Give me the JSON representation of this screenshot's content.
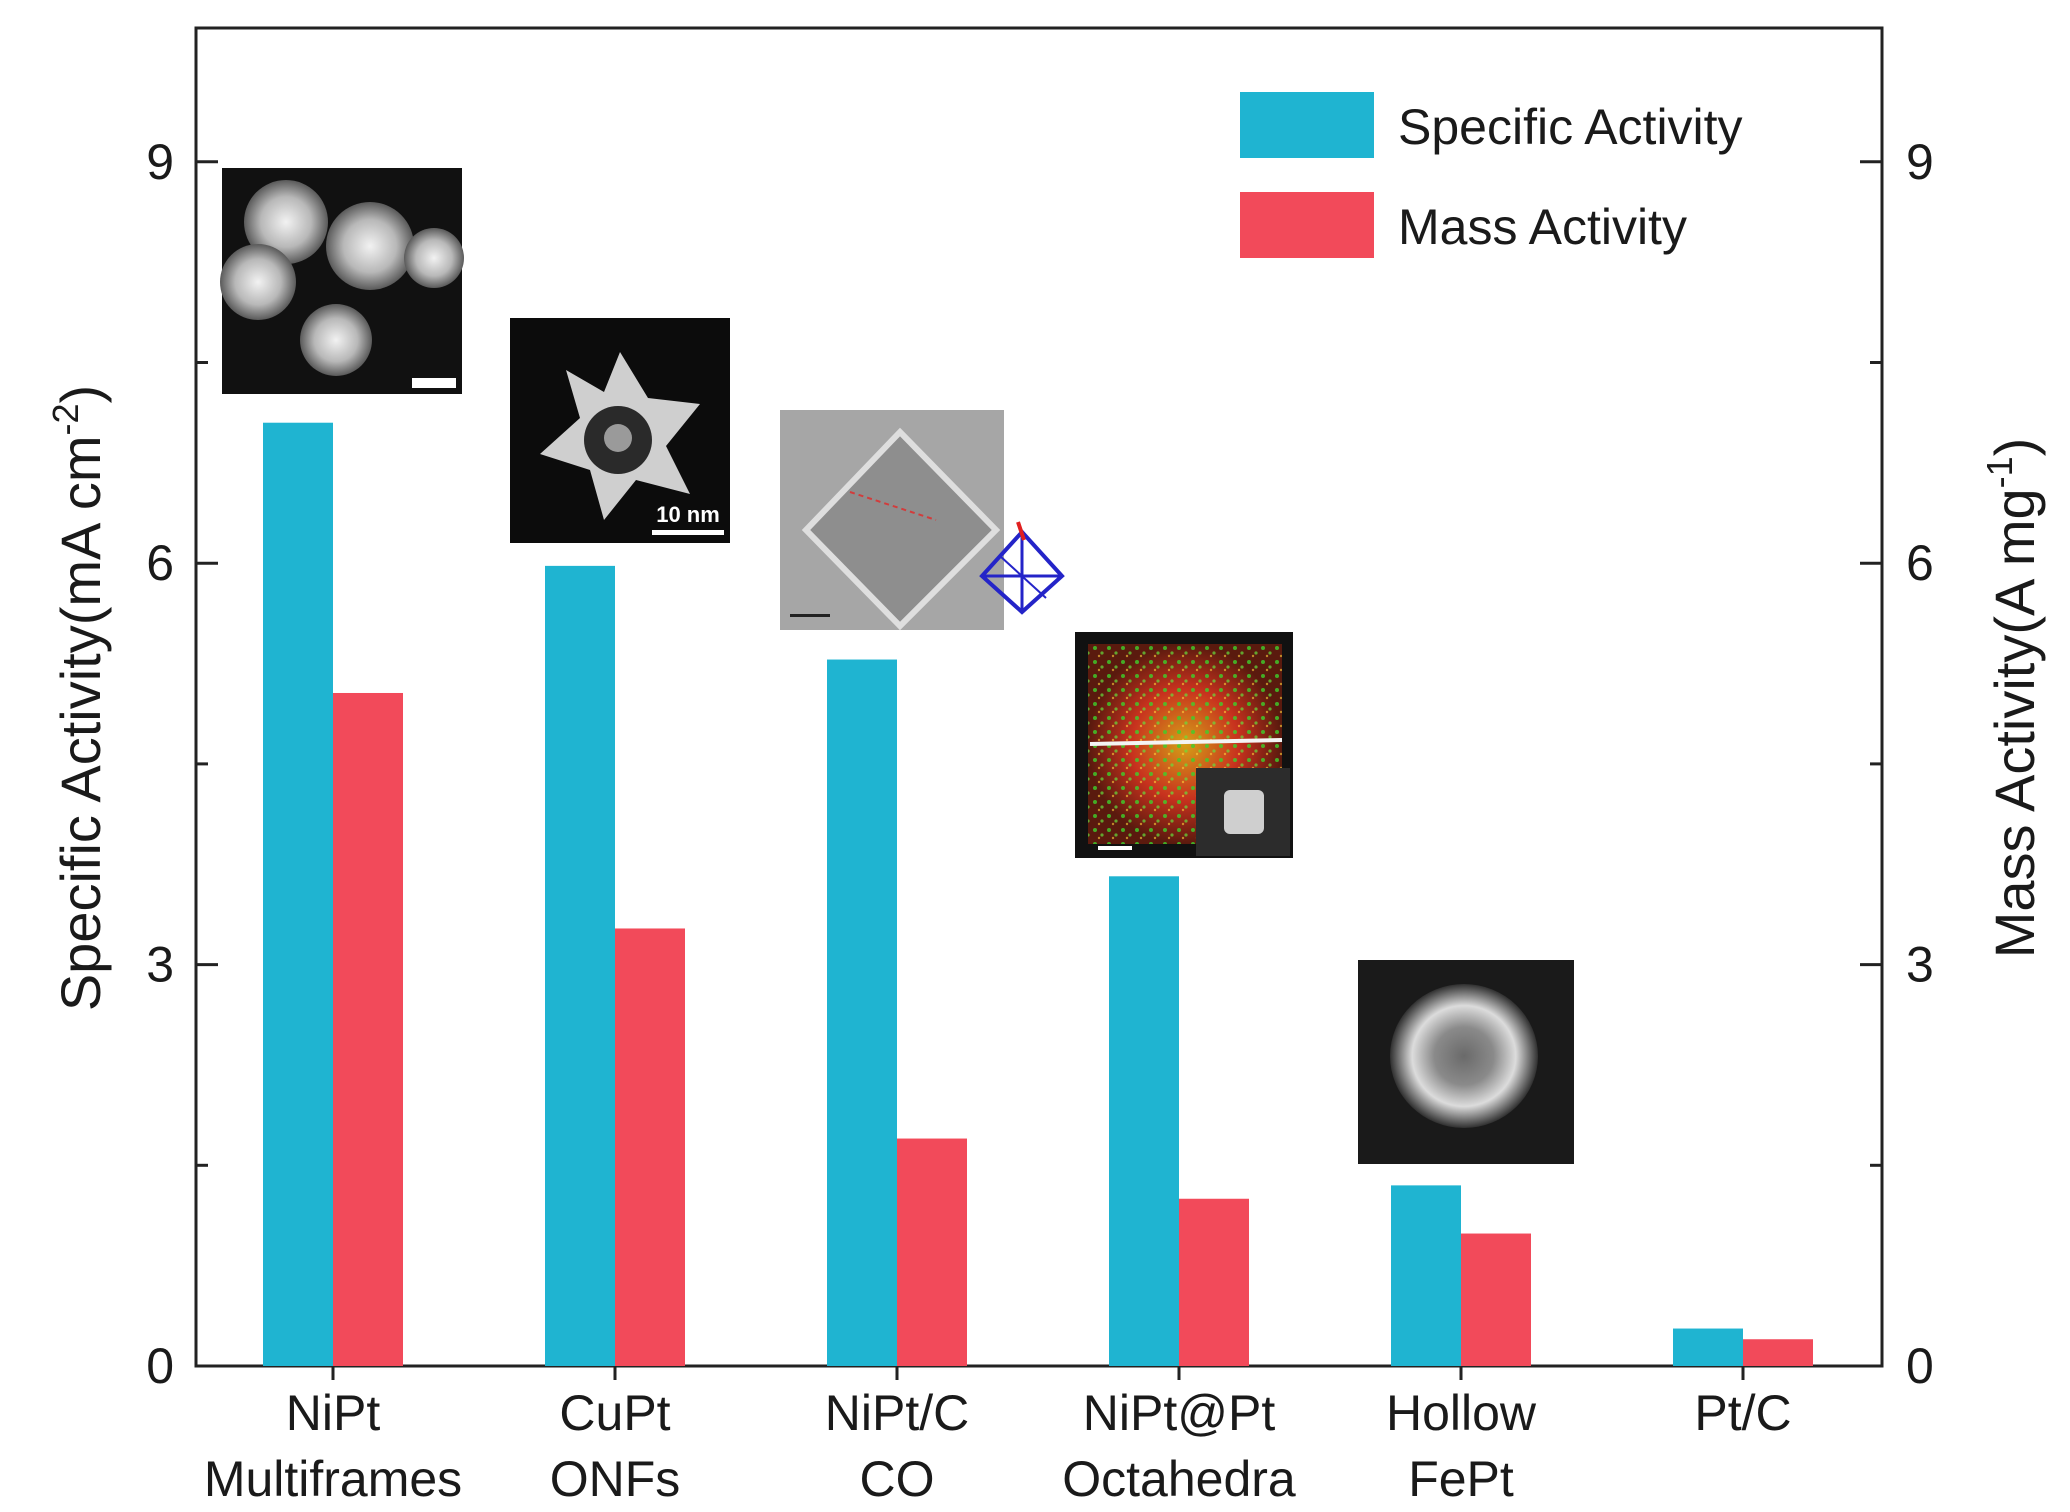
{
  "chart_data": {
    "type": "bar",
    "categories": [
      [
        "NiPt",
        "Multiframes"
      ],
      [
        "CuPt",
        "ONFs"
      ],
      [
        "NiPt/C",
        "CO"
      ],
      [
        "NiPt@Pt",
        "Octahedra"
      ],
      [
        "Hollow",
        "FePt"
      ],
      [
        "Pt/C",
        ""
      ]
    ],
    "series": [
      {
        "name": "Specific Activity",
        "color": "#1fb4d1",
        "axis": "left",
        "values": [
          7.05,
          5.98,
          5.28,
          3.66,
          1.35,
          0.28
        ]
      },
      {
        "name": "Mass Activity",
        "color": "#f24a5a",
        "axis": "right",
        "values": [
          5.03,
          3.27,
          1.7,
          1.25,
          0.99,
          0.2
        ]
      }
    ],
    "ylabel_left": {
      "main": "Specific Activity(mA cm",
      "sup": "-2",
      "end": ")"
    },
    "ylabel_right": {
      "main": "Mass Activity(A mg",
      "sup": "-1",
      "end": ")"
    },
    "ylim": [
      0,
      10
    ],
    "yticks": [
      "0",
      "3",
      "6",
      "9"
    ],
    "ytick_values": [
      0,
      3,
      6,
      9
    ],
    "minor_ticks": [
      1.5,
      4.5,
      7.5
    ],
    "legend_position": "top-right",
    "grid": false,
    "annotations": [
      "micrograph insets above each of the first five bar groups"
    ],
    "inset_labels": [
      "10 nm"
    ]
  }
}
